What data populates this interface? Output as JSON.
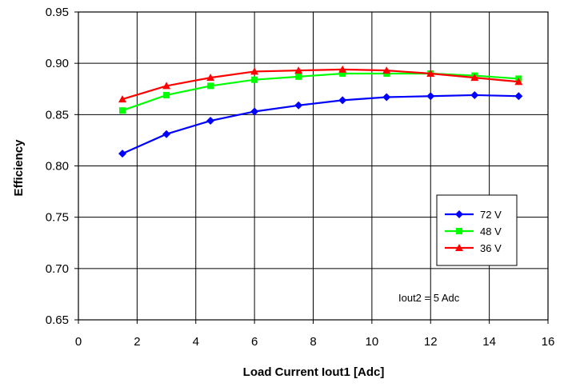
{
  "chart_data": {
    "type": "line",
    "title": "",
    "xlabel": "Load Current Iout1 [Adc]",
    "ylabel": "Efficiency",
    "xlim": [
      0,
      16
    ],
    "ylim": [
      0.65,
      0.95
    ],
    "x_ticks": [
      "0",
      "2",
      "4",
      "6",
      "8",
      "10",
      "12",
      "14",
      "16"
    ],
    "y_ticks": [
      "0.65",
      "0.70",
      "0.75",
      "0.80",
      "0.85",
      "0.90",
      "0.95"
    ],
    "grid": true,
    "legend_position": "right",
    "annotation": "Iout2 = 5 Adc",
    "x": [
      1.5,
      3,
      4.5,
      6,
      7.5,
      9,
      10.5,
      12,
      13.5,
      15
    ],
    "series": [
      {
        "name": "72 V",
        "color": "#0000ff",
        "marker": "diamond",
        "values": [
          0.812,
          0.831,
          0.844,
          0.853,
          0.859,
          0.864,
          0.867,
          0.868,
          0.869,
          0.868
        ]
      },
      {
        "name": "48 V",
        "color": "#00ff00",
        "marker": "square",
        "values": [
          0.854,
          0.869,
          0.878,
          0.884,
          0.887,
          0.89,
          0.89,
          0.89,
          0.888,
          0.885
        ]
      },
      {
        "name": "36 V",
        "color": "#ff0000",
        "marker": "triangle",
        "values": [
          0.865,
          0.878,
          0.886,
          0.892,
          0.893,
          0.894,
          0.893,
          0.89,
          0.886,
          0.882
        ]
      }
    ]
  }
}
